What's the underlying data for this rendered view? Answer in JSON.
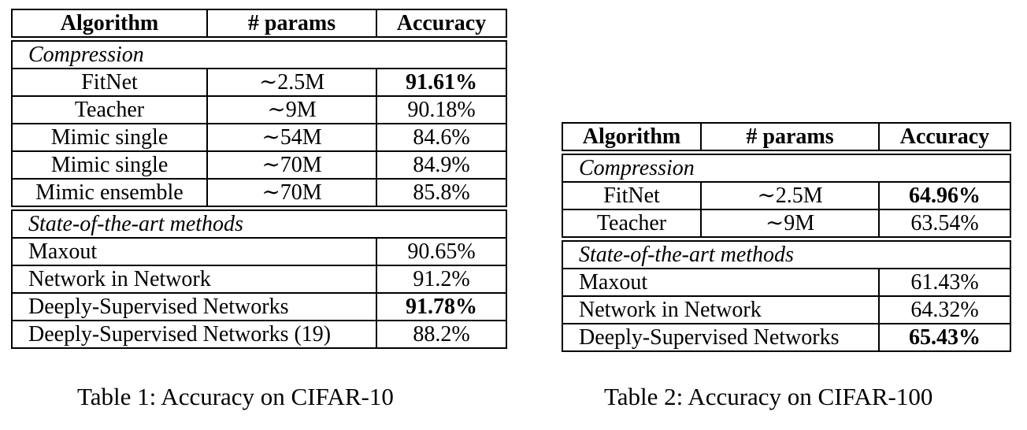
{
  "table1": {
    "headers": [
      "Algorithm",
      "# params",
      "Accuracy"
    ],
    "compression_label": "Compression",
    "compression_rows": [
      {
        "algorithm": "FitNet",
        "params": "∼2.5M",
        "accuracy": "91.61%",
        "bold": true
      },
      {
        "algorithm": "Teacher",
        "params": "∼9M",
        "accuracy": "90.18%",
        "bold": false
      },
      {
        "algorithm": "Mimic single",
        "params": "∼54M",
        "accuracy": "84.6%",
        "bold": false
      },
      {
        "algorithm": "Mimic single",
        "params": "∼70M",
        "accuracy": "84.9%",
        "bold": false
      },
      {
        "algorithm": "Mimic ensemble",
        "params": "∼70M",
        "accuracy": "85.8%",
        "bold": false
      }
    ],
    "sota_label": "State-of-the-art methods",
    "sota_rows": [
      {
        "algorithm": "Maxout",
        "accuracy": "90.65%",
        "bold": false
      },
      {
        "algorithm": "Network in Network",
        "accuracy": "91.2%",
        "bold": false
      },
      {
        "algorithm": "Deeply-Supervised Networks",
        "accuracy": "91.78%",
        "bold": true
      },
      {
        "algorithm": "Deeply-Supervised Networks (19)",
        "accuracy": "88.2%",
        "bold": false
      }
    ],
    "caption": "Table 1: Accuracy on CIFAR-10"
  },
  "table2": {
    "headers": [
      "Algorithm",
      "# params",
      "Accuracy"
    ],
    "compression_label": "Compression",
    "compression_rows": [
      {
        "algorithm": "FitNet",
        "params": "∼2.5M",
        "accuracy": "64.96%",
        "bold": true
      },
      {
        "algorithm": "Teacher",
        "params": "∼9M",
        "accuracy": "63.54%",
        "bold": false
      }
    ],
    "sota_label": "State-of-the-art methods",
    "sota_rows": [
      {
        "algorithm": "Maxout",
        "accuracy": "61.43%",
        "bold": false
      },
      {
        "algorithm": "Network in Network",
        "accuracy": "64.32%",
        "bold": false
      },
      {
        "algorithm": "Deeply-Supervised Networks",
        "accuracy": "65.43%",
        "bold": true
      }
    ],
    "caption": "Table 2: Accuracy on CIFAR-100"
  }
}
